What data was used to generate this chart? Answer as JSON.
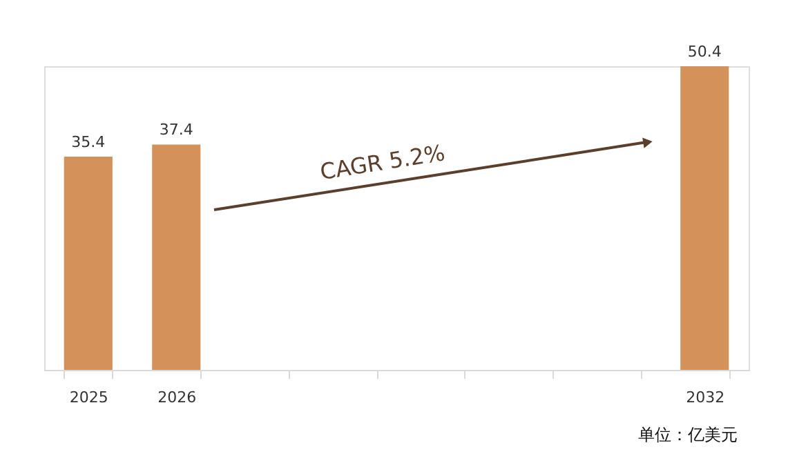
{
  "chart_data": {
    "type": "bar",
    "categories": [
      "2025",
      "2026",
      null,
      null,
      null,
      null,
      null,
      "2032"
    ],
    "values": [
      35.4,
      37.4,
      null,
      null,
      null,
      null,
      null,
      50.4
    ],
    "color": "#d4915a",
    "data_labels": true,
    "grid": false,
    "tick_labels": "x",
    "annotations": [
      "CAGR  5.2%",
      "单位：亿美元"
    ]
  }
}
